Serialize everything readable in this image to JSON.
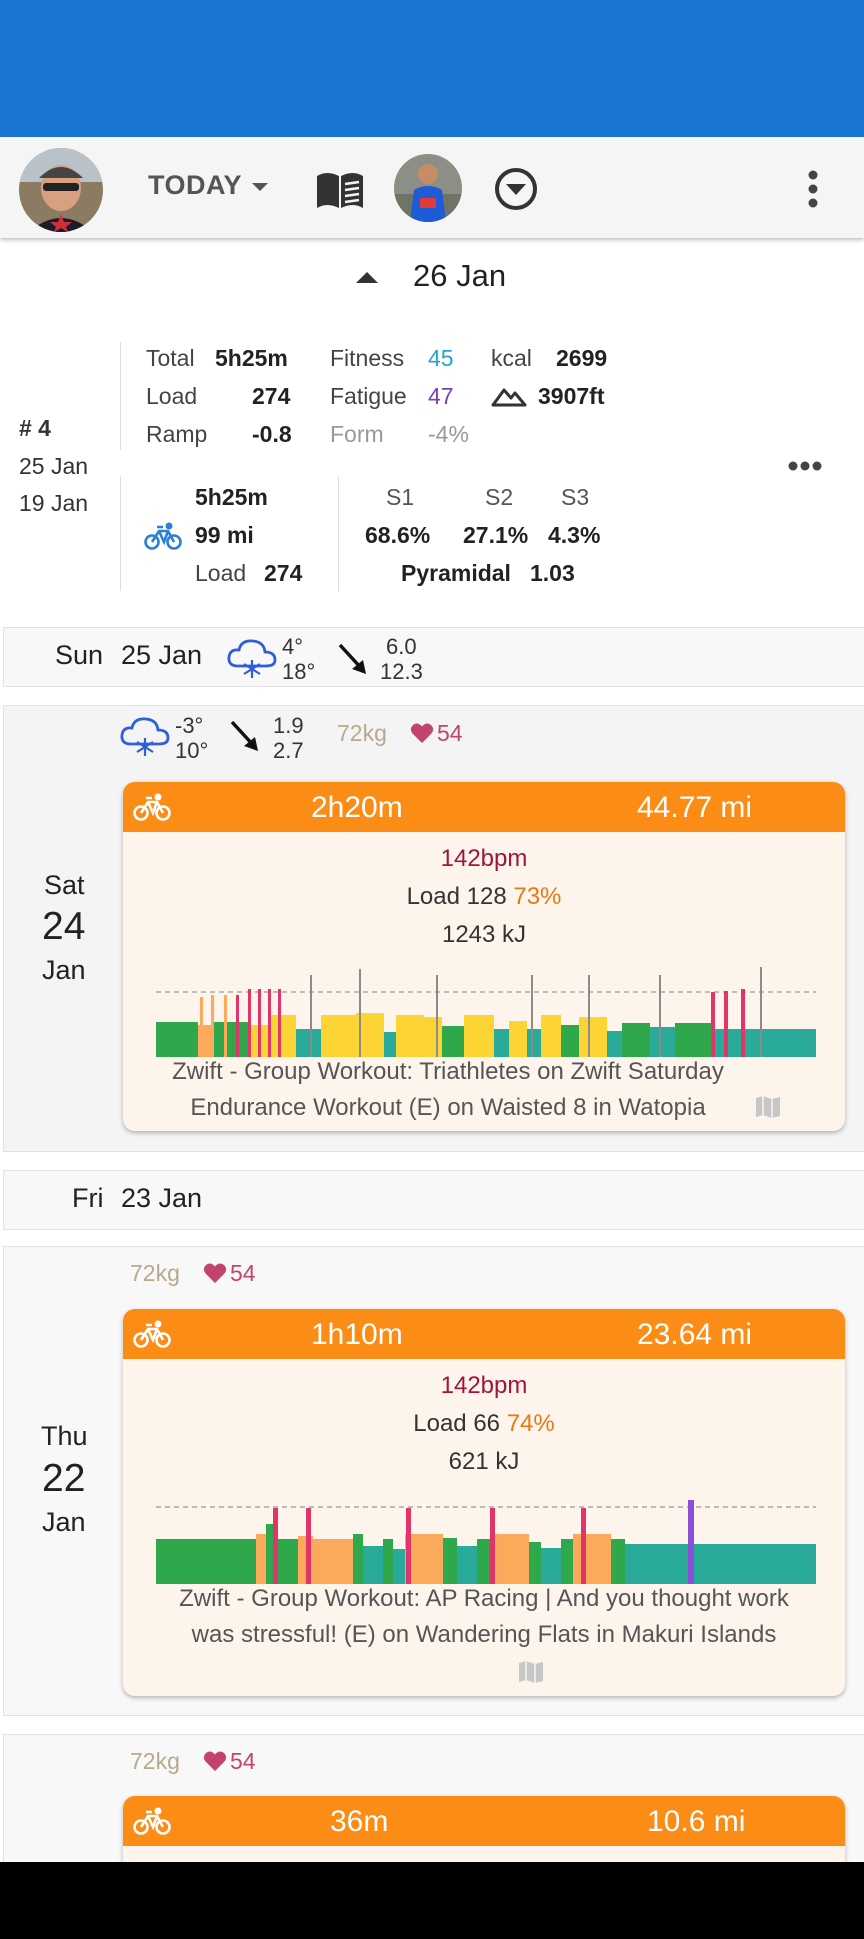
{
  "toolbar": {
    "today_label": "TODAY",
    "icons": [
      "user-avatar",
      "book-icon",
      "athlete-avatar",
      "chevron-circle-icon",
      "more-vert-icon"
    ]
  },
  "week_header": {
    "date": "26 Jan"
  },
  "summary": {
    "week_number": "# 4",
    "date_to": "25 Jan",
    "date_from": "19 Jan",
    "total_label": "Total",
    "total_value": "5h25m",
    "load_label": "Load",
    "load_value": "274",
    "ramp_label": "Ramp",
    "ramp_value": "-0.8",
    "fitness_label": "Fitness",
    "fitness_value": "45",
    "fatigue_label": "Fatigue",
    "fatigue_value": "47",
    "form_label": "Form",
    "form_value": "-4%",
    "kcal_label": "kcal",
    "kcal_value": "2699",
    "elevation_value": "3907ft",
    "ride_time": "5h25m",
    "ride_distance": "99 mi",
    "ride_load_label": "Load",
    "ride_load_value": "274",
    "zones": [
      {
        "label": "S1",
        "value": "68.6%"
      },
      {
        "label": "S2",
        "value": "27.1%"
      },
      {
        "label": "S3",
        "value": "4.3%"
      }
    ],
    "distribution_label": "Pyramidal",
    "distribution_value": "1.03",
    "colors": {
      "fitness": "#29a3d6",
      "fatigue": "#7b3fb8",
      "form": "#999999"
    }
  },
  "days": {
    "sun": {
      "weekday": "Sun",
      "date": "25 Jan",
      "temp_low": "4°",
      "temp_high": "18°",
      "wind_low": "6.0",
      "wind_high": "12.3"
    },
    "sat": {
      "weekday": "Sat",
      "day": "24",
      "month": "Jan",
      "temp_low": "-3°",
      "temp_high": "10°",
      "wind_low": "1.9",
      "wind_high": "2.7",
      "weight": "72kg",
      "resting_hr": "54",
      "activity": {
        "duration": "2h20m",
        "distance": "44.77 mi",
        "avg_hr": "142bpm",
        "load_label": "Load",
        "load_value": "128",
        "intensity": "73%",
        "work": "1243 kJ",
        "name": "Zwift - Group Workout: Triathletes on Zwift Saturday Endurance Workout (E) on Waisted 8 in Watopia"
      }
    },
    "fri": {
      "weekday": "Fri",
      "date": "23 Jan"
    },
    "thu": {
      "weekday": "Thu",
      "day": "22",
      "month": "Jan",
      "weight": "72kg",
      "resting_hr": "54",
      "activity": {
        "duration": "1h10m",
        "distance": "23.64 mi",
        "avg_hr": "142bpm",
        "load_label": "Load",
        "load_value": "66",
        "intensity": "74%",
        "work": "621 kJ",
        "name": "Zwift - Group Workout: AP Racing | And you thought work was stressful! (E) on Wandering Flats in Makuri Islands"
      }
    },
    "wed": {
      "weight": "72kg",
      "resting_hr": "54",
      "activity": {
        "duration": "36m",
        "distance": "10.6 mi"
      }
    }
  },
  "zone_colors": {
    "green": "#2ea84a",
    "teal": "#2aab9a",
    "yellow": "#fcd535",
    "orange": "#fbaa5b",
    "red": "#e0356a",
    "purple": "#8a4fd6"
  }
}
